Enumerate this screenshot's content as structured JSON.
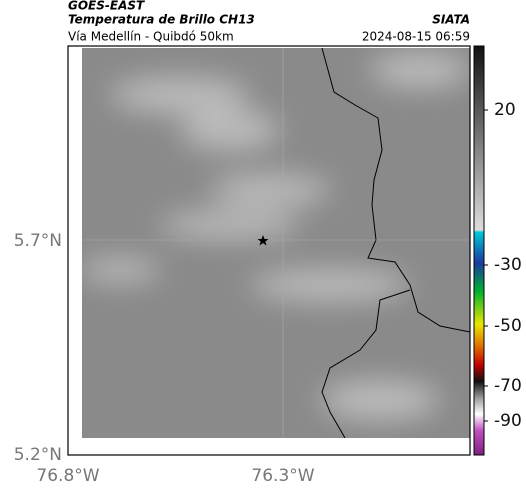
{
  "header": {
    "satellite": "GOES-EAST",
    "product": "Temperatura de Brillo CH13",
    "source": "SIATA",
    "region": "Vía Medellín - Quibdó 50km",
    "datetime": "2024-08-15 06:59"
  },
  "map": {
    "lat_labels": [
      "5.7°N",
      "5.2°N"
    ],
    "lon_labels": [
      "76.8°W",
      "76.3°W"
    ]
  },
  "colorbar": {
    "ticks": [
      20,
      -30,
      -50,
      -70,
      -90
    ]
  }
}
